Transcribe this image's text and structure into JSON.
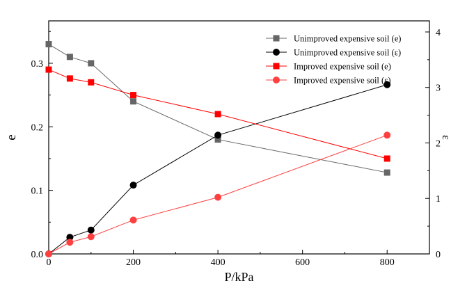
{
  "chart_data": {
    "type": "line",
    "x": [
      0,
      50,
      100,
      200,
      400,
      800
    ],
    "xlabel": "P/kPa",
    "ylabel": "e",
    "y2label": "ε",
    "xlim": [
      0,
      900
    ],
    "ylim": [
      0,
      0.3667
    ],
    "y2lim": [
      0,
      4.2
    ],
    "x_ticks": [
      "0",
      "200",
      "400",
      "600",
      "800"
    ],
    "y_ticks": [
      "0.0",
      "0.1",
      "0.2",
      "0.3"
    ],
    "y2_ticks": [
      "0",
      "1",
      "2",
      "3",
      "4"
    ],
    "grid": false,
    "legend_position": "top-right",
    "series": [
      {
        "name": "Unimproved expensive soil (e)",
        "axis": "left",
        "color": "#666666",
        "marker": "square",
        "values": [
          0.33,
          0.31,
          0.3,
          0.24,
          0.18,
          0.128
        ]
      },
      {
        "name": "Unimproved expensive soil (ε)",
        "axis": "right",
        "color": "#000000",
        "marker": "circle",
        "values": [
          0.0,
          0.3,
          0.43,
          1.24,
          2.14,
          3.05
        ]
      },
      {
        "name": "Improved expensive soil (e)",
        "axis": "left",
        "color": "#ff0000",
        "marker": "square",
        "values": [
          0.29,
          0.276,
          0.27,
          0.25,
          0.22,
          0.15
        ]
      },
      {
        "name": "Improved expensive soil (ε)",
        "axis": "right",
        "color": "#ff4040",
        "marker": "circle",
        "values": [
          0.0,
          0.21,
          0.31,
          0.61,
          1.02,
          2.14
        ]
      }
    ]
  }
}
